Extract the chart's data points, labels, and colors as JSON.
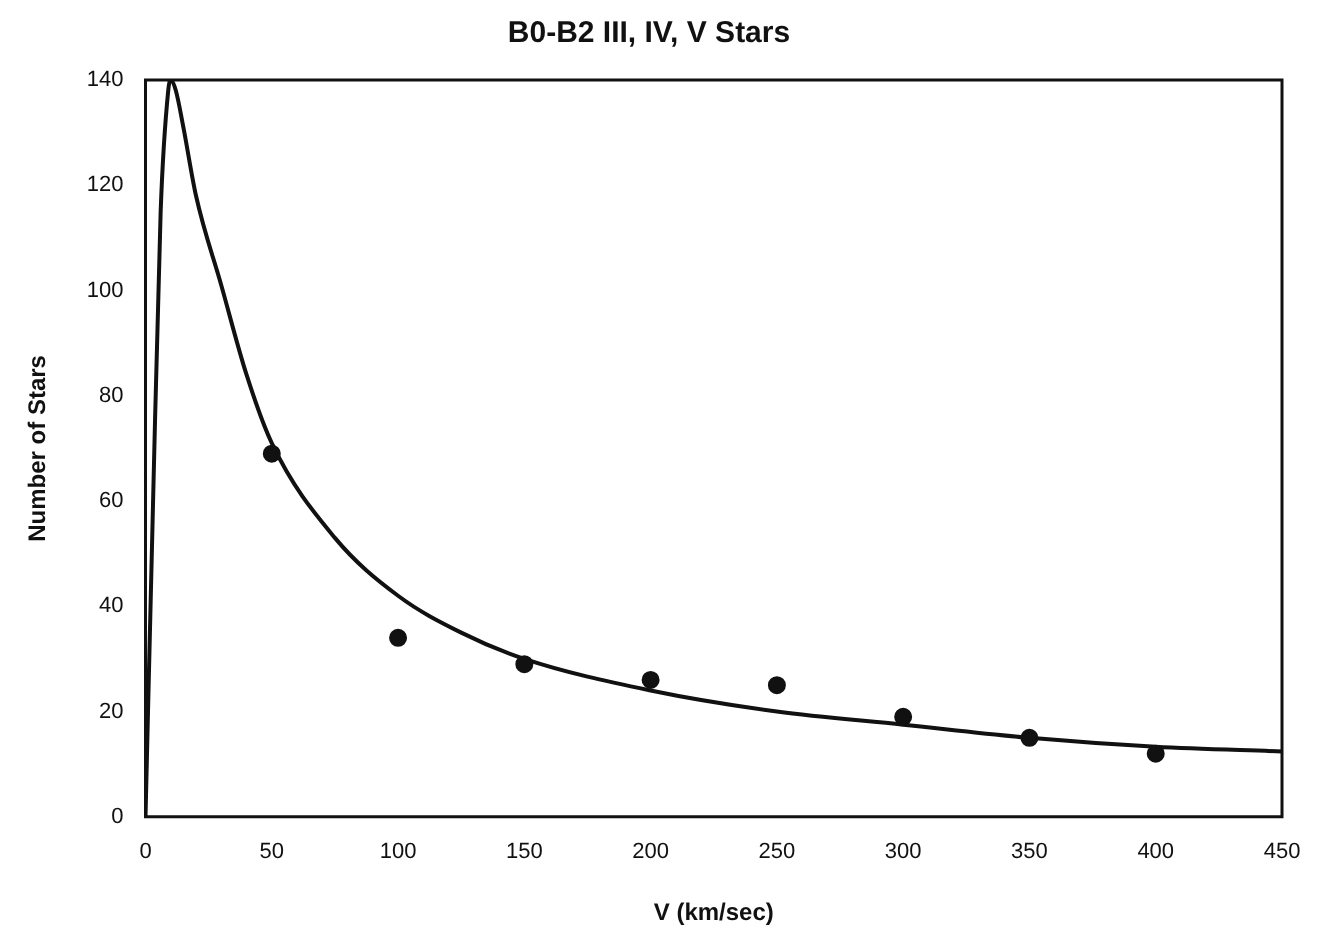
{
  "chart_data": {
    "type": "scatter",
    "title": "B0-B2 III, IV, V Stars",
    "xlabel": "V (km/sec)",
    "ylabel": "Number of Stars",
    "xlim": [
      0,
      450
    ],
    "ylim": [
      0,
      140
    ],
    "xticks": [
      0,
      50,
      100,
      150,
      200,
      250,
      300,
      350,
      400,
      450
    ],
    "yticks": [
      0,
      20,
      40,
      60,
      80,
      100,
      120,
      140
    ],
    "grid": false,
    "legend": false,
    "series": [
      {
        "color": "#111111",
        "marker": "circle",
        "x": [
          50,
          100,
          150,
          200,
          250,
          300,
          350,
          400
        ],
        "values": [
          69,
          34,
          29,
          26,
          25,
          19,
          15,
          12
        ]
      },
      {
        "type": "line",
        "color": "#111111",
        "marker": "none",
        "line_style": "solid",
        "x": [
          0,
          3,
          6,
          9,
          10,
          12,
          15,
          20,
          30,
          40,
          50,
          75,
          100,
          125,
          150,
          200,
          250,
          300,
          350,
          400,
          450
        ],
        "values": [
          0,
          60,
          115,
          138,
          140,
          138,
          131,
          118,
          101,
          84,
          71,
          53,
          42,
          35,
          30,
          24,
          20,
          17.5,
          15,
          13.3,
          12.4
        ]
      }
    ]
  }
}
